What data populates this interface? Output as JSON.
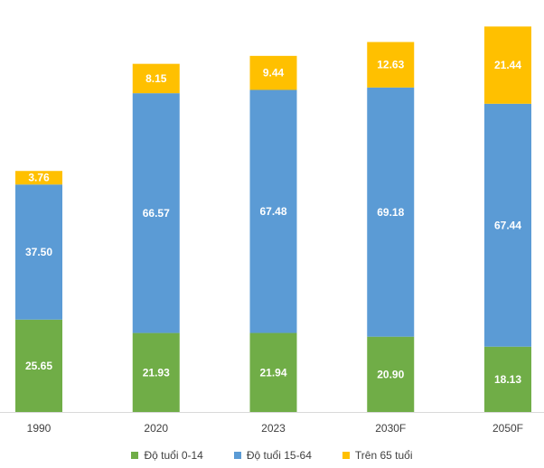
{
  "chart_data": {
    "type": "bar",
    "stacked": true,
    "categories": [
      "1990",
      "2020",
      "2023",
      "2030F",
      "2050F"
    ],
    "series": [
      {
        "name": "Độ tuổi 0-14",
        "color": "#70AD47",
        "values": [
          25.65,
          21.93,
          21.94,
          20.9,
          18.13
        ]
      },
      {
        "name": "Độ tuổi 15-64",
        "color": "#5B9BD5",
        "values": [
          37.5,
          66.57,
          67.48,
          69.18,
          67.44
        ]
      },
      {
        "name": "Trên 65 tuổi",
        "color": "#FFC000",
        "values": [
          3.76,
          8.15,
          9.44,
          12.63,
          21.44
        ]
      }
    ],
    "grid": false,
    "legend_position": "bottom"
  }
}
